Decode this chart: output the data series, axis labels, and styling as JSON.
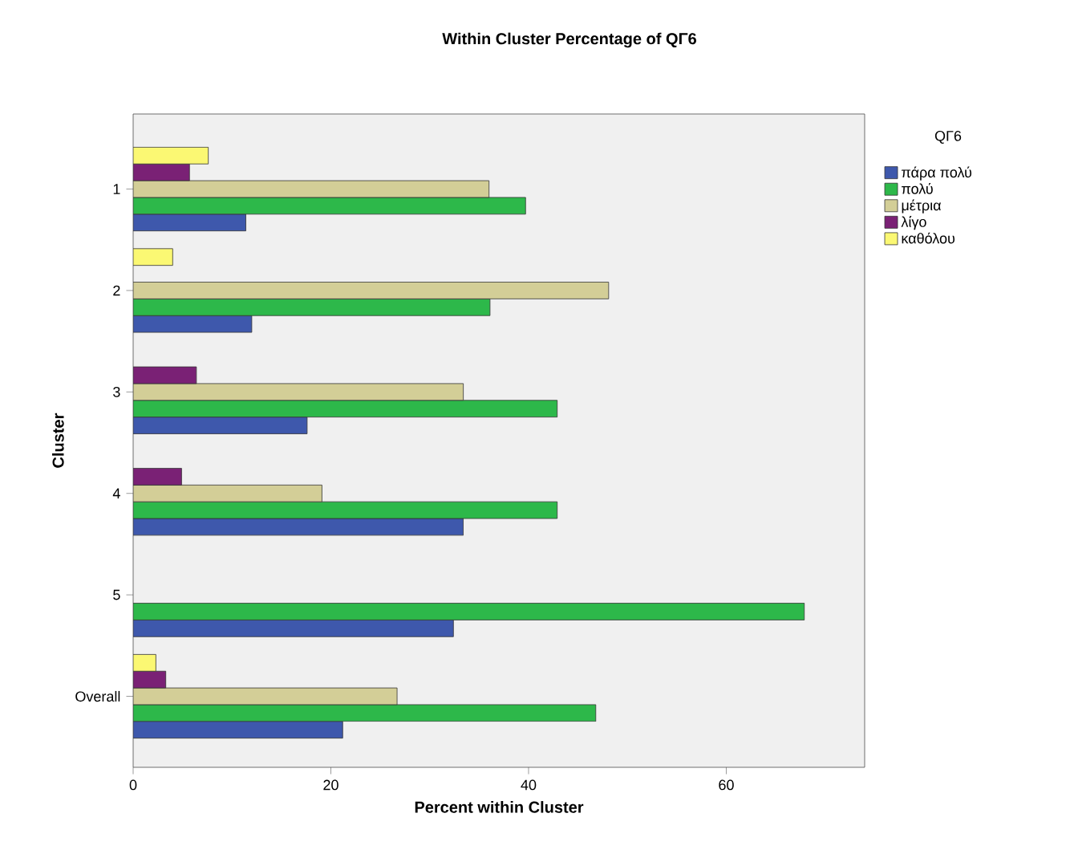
{
  "chart_data": {
    "type": "bar",
    "orientation": "horizontal",
    "title": "Within Cluster Percentage of QΓ6",
    "xlabel": "Percent within Cluster",
    "ylabel": "Cluster",
    "legend_title": "QΓ6",
    "legend": "top right",
    "categories": [
      "1",
      "2",
      "3",
      "4",
      "5",
      "Overall"
    ],
    "xlim": [
      0,
      74
    ],
    "xticks": [
      0,
      20,
      40,
      60
    ],
    "series": [
      {
        "name": "πάρα πολύ",
        "color": "#3e58ac",
        "values": [
          11.4,
          12.0,
          17.6,
          33.4,
          32.4,
          21.2
        ]
      },
      {
        "name": "πολύ",
        "color": "#2db84a",
        "values": [
          39.7,
          36.1,
          42.9,
          42.9,
          67.9,
          46.8
        ]
      },
      {
        "name": "μέτρια",
        "color": "#d3ce97",
        "values": [
          36.0,
          48.1,
          33.4,
          19.1,
          0,
          26.7
        ]
      },
      {
        "name": "λίγο",
        "color": "#7a2175",
        "values": [
          5.7,
          0,
          6.4,
          4.9,
          0,
          3.3
        ]
      },
      {
        "name": "καθόλου",
        "color": "#fbf873",
        "values": [
          7.6,
          4.0,
          0,
          0,
          0,
          2.3
        ]
      }
    ]
  }
}
